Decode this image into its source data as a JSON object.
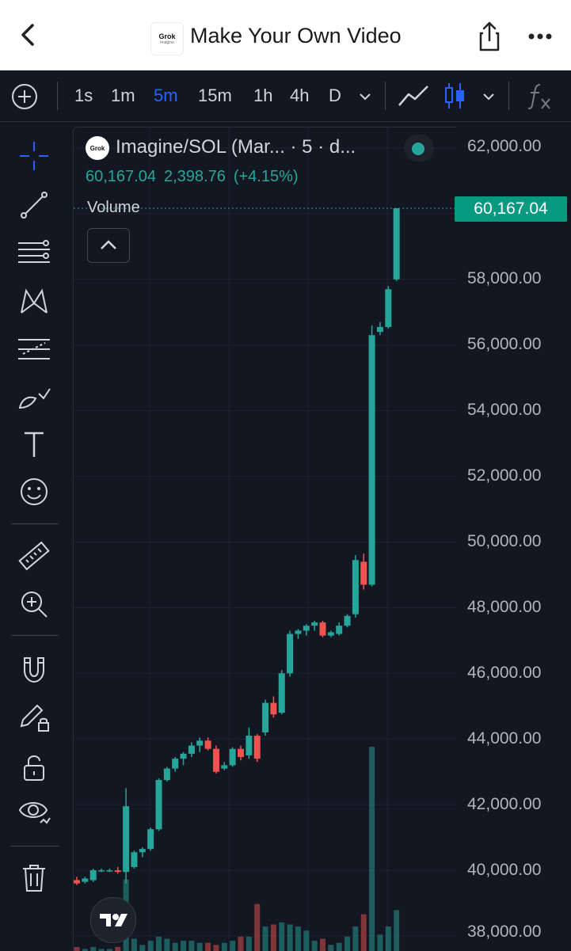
{
  "header": {
    "title": "Make Your Own Video",
    "logo_text": "Grok",
    "logo_sub": "Imagine"
  },
  "intervals": [
    "1s",
    "1m",
    "5m",
    "15m",
    "1h",
    "4h",
    "D"
  ],
  "active_interval": "5m",
  "symbol": {
    "title": "Imagine/SOL (Mar... · 5 · d...",
    "last": "60,167.04",
    "change": "2,398.76",
    "change_pct": "(+4.15%)",
    "volume_label": "Volume"
  },
  "price_axis": {
    "labels": [
      "62,000.00",
      "58,000.00",
      "56,000.00",
      "54,000.00",
      "52,000.00",
      "50,000.00",
      "48,000.00",
      "46,000.00",
      "44,000.00",
      "42,000.00",
      "40,000.00",
      "38,000.00"
    ],
    "last_price_tag": "60,167.04"
  },
  "colors": {
    "up": "#26a69a",
    "down": "#ef5350",
    "accent": "#2962ff",
    "background": "#131722"
  },
  "chart_data": {
    "type": "candlestick",
    "ylim": [
      37700,
      62400
    ],
    "last_price": 60167.04,
    "candles": [
      {
        "o": 39700,
        "h": 39800,
        "l": 39550,
        "c": 39600
      },
      {
        "o": 39650,
        "h": 39800,
        "l": 39600,
        "c": 39750
      },
      {
        "o": 39700,
        "h": 40050,
        "l": 39650,
        "c": 40000
      },
      {
        "o": 40000,
        "h": 40050,
        "l": 39950,
        "c": 40000
      },
      {
        "o": 40000,
        "h": 40050,
        "l": 39950,
        "c": 40000
      },
      {
        "o": 40000,
        "h": 40100,
        "l": 39900,
        "c": 39950
      },
      {
        "o": 39950,
        "h": 42500,
        "l": 39600,
        "c": 41950
      },
      {
        "o": 40100,
        "h": 40600,
        "l": 40050,
        "c": 40550
      },
      {
        "o": 40550,
        "h": 40700,
        "l": 40400,
        "c": 40650
      },
      {
        "o": 40650,
        "h": 41300,
        "l": 40600,
        "c": 41250
      },
      {
        "o": 41250,
        "h": 42800,
        "l": 41200,
        "c": 42750
      },
      {
        "o": 42750,
        "h": 43150,
        "l": 42700,
        "c": 43100
      },
      {
        "o": 43100,
        "h": 43450,
        "l": 43000,
        "c": 43400
      },
      {
        "o": 43400,
        "h": 43600,
        "l": 43200,
        "c": 43550
      },
      {
        "o": 43550,
        "h": 43900,
        "l": 43450,
        "c": 43800
      },
      {
        "o": 43800,
        "h": 44050,
        "l": 43600,
        "c": 43950
      },
      {
        "o": 43950,
        "h": 44050,
        "l": 43650,
        "c": 43700
      },
      {
        "o": 43700,
        "h": 43800,
        "l": 42950,
        "c": 43000
      },
      {
        "o": 43100,
        "h": 43300,
        "l": 43050,
        "c": 43200
      },
      {
        "o": 43200,
        "h": 43750,
        "l": 43150,
        "c": 43700
      },
      {
        "o": 43700,
        "h": 43800,
        "l": 43350,
        "c": 43450
      },
      {
        "o": 43500,
        "h": 44350,
        "l": 43400,
        "c": 44100
      },
      {
        "o": 44100,
        "h": 44150,
        "l": 43300,
        "c": 43400
      },
      {
        "o": 44200,
        "h": 45200,
        "l": 44100,
        "c": 45100
      },
      {
        "o": 45100,
        "h": 45300,
        "l": 44650,
        "c": 44750
      },
      {
        "o": 44800,
        "h": 46100,
        "l": 44750,
        "c": 46000
      },
      {
        "o": 46000,
        "h": 47300,
        "l": 45900,
        "c": 47200
      },
      {
        "o": 47200,
        "h": 47350,
        "l": 47050,
        "c": 47300
      },
      {
        "o": 47300,
        "h": 47500,
        "l": 47150,
        "c": 47450
      },
      {
        "o": 47450,
        "h": 47600,
        "l": 47300,
        "c": 47550
      },
      {
        "o": 47550,
        "h": 47600,
        "l": 47100,
        "c": 47150
      },
      {
        "o": 47150,
        "h": 47300,
        "l": 47100,
        "c": 47250
      },
      {
        "o": 47200,
        "h": 47550,
        "l": 47150,
        "c": 47450
      },
      {
        "o": 47450,
        "h": 47800,
        "l": 47400,
        "c": 47750
      },
      {
        "o": 47800,
        "h": 49600,
        "l": 47700,
        "c": 49450
      },
      {
        "o": 49400,
        "h": 49650,
        "l": 48550,
        "c": 48700
      },
      {
        "o": 48700,
        "h": 56600,
        "l": 48650,
        "c": 56300
      },
      {
        "o": 56400,
        "h": 56700,
        "l": 56300,
        "c": 56550
      },
      {
        "o": 56550,
        "h": 57800,
        "l": 56500,
        "c": 57700
      },
      {
        "o": 58000,
        "h": 60167,
        "l": 57950,
        "c": 60167
      }
    ],
    "volume": [
      0.02,
      0.01,
      0.02,
      0.01,
      0.01,
      0.02,
      0.35,
      0.06,
      0.03,
      0.05,
      0.07,
      0.06,
      0.04,
      0.05,
      0.05,
      0.04,
      0.04,
      0.03,
      0.04,
      0.05,
      0.07,
      0.07,
      0.23,
      0.12,
      0.13,
      0.14,
      0.13,
      0.12,
      0.1,
      0.05,
      0.06,
      0.03,
      0.04,
      0.07,
      0.12,
      0.18,
      1.0,
      0.08,
      0.12,
      0.2
    ]
  }
}
